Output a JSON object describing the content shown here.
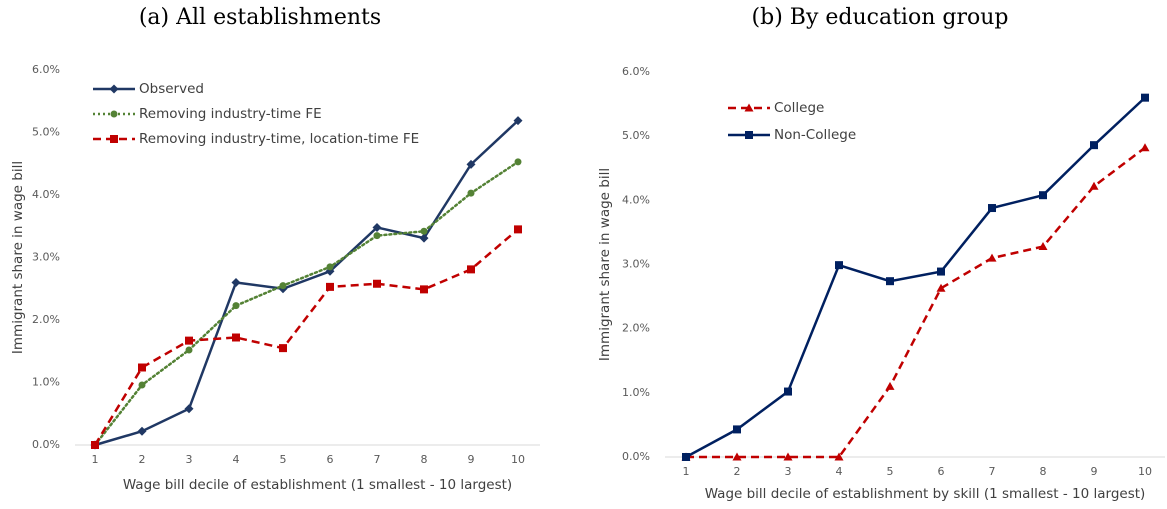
{
  "chart_data": [
    {
      "type": "line",
      "title": "(a) All establishments",
      "x_label": "Wage bill decile of establishment (1 smallest - 10 largest)",
      "y_label": "Immigrant share in wage bill",
      "categories": [
        "1",
        "2",
        "3",
        "4",
        "5",
        "6",
        "7",
        "8",
        "9",
        "10"
      ],
      "ylim": [
        0,
        6
      ],
      "yticks": [
        {
          "value": 0,
          "label": "0.0%"
        },
        {
          "value": 1,
          "label": "1.0%"
        },
        {
          "value": 2,
          "label": "2.0%"
        },
        {
          "value": 3,
          "label": "3.0%"
        },
        {
          "value": 4,
          "label": "4.0%"
        },
        {
          "value": 5,
          "label": "5.0%"
        },
        {
          "value": 6,
          "label": "6.0%"
        }
      ],
      "series": [
        {
          "name": "Observed",
          "color": "#203864",
          "style": "solid",
          "marker": "diamond",
          "values": [
            0,
            0.22,
            0.58,
            2.6,
            2.5,
            2.78,
            3.48,
            3.31,
            4.49,
            5.19
          ]
        },
        {
          "name": "Removing industry-time FE",
          "color": "#548235",
          "style": "dotted",
          "marker": "circle",
          "values": [
            0,
            0.96,
            1.52,
            2.23,
            2.55,
            2.85,
            3.35,
            3.42,
            4.03,
            4.53
          ]
        },
        {
          "name": "Removing industry-time, location-time FE",
          "color": "#c00000",
          "style": "dashed",
          "marker": "square",
          "values": [
            0,
            1.24,
            1.67,
            1.72,
            1.55,
            2.53,
            2.58,
            2.49,
            2.81,
            3.45
          ]
        }
      ]
    },
    {
      "type": "line",
      "title": "(b) By education group",
      "x_label": "Wage bill decile of establishment by skill (1 smallest - 10 largest)",
      "y_label": "Immigrant share in wage bill",
      "categories": [
        "1",
        "2",
        "3",
        "4",
        "5",
        "6",
        "7",
        "8",
        "9",
        "10"
      ],
      "ylim": [
        0,
        6
      ],
      "yticks": [
        {
          "value": 0,
          "label": "0.0%"
        },
        {
          "value": 1,
          "label": "1.0%"
        },
        {
          "value": 2,
          "label": "2.0%"
        },
        {
          "value": 3,
          "label": "3.0%"
        },
        {
          "value": 4,
          "label": "4.0%"
        },
        {
          "value": 5,
          "label": "5.0%"
        },
        {
          "value": 6,
          "label": "6.0%"
        }
      ],
      "series": [
        {
          "name": "College",
          "color": "#c00000",
          "style": "dashed",
          "marker": "triangle",
          "values": [
            0,
            0,
            0,
            0,
            1.1,
            2.63,
            3.1,
            3.28,
            4.22,
            4.82
          ]
        },
        {
          "name": "Non-College",
          "color": "#002060",
          "style": "solid",
          "marker": "square",
          "values": [
            0,
            0.43,
            1.02,
            2.99,
            2.74,
            2.89,
            3.88,
            4.08,
            4.86,
            5.6
          ]
        }
      ]
    }
  ]
}
